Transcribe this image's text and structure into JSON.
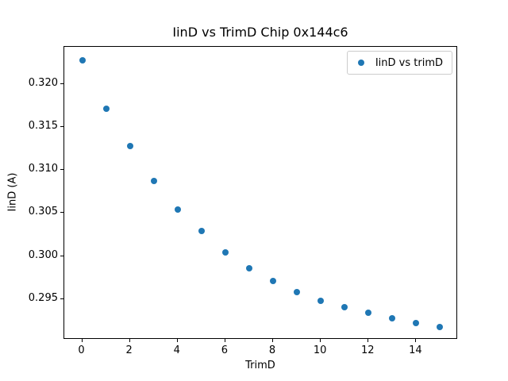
{
  "chart_data": {
    "type": "scatter",
    "title": "IinD vs TrimD Chip 0x144c6",
    "xlabel": "TrimD",
    "ylabel": "IinD (A)",
    "legend": [
      "IinD vs trimD"
    ],
    "legend_position": "upper right",
    "grid": false,
    "marker_color": "#1f77b4",
    "x": [
      0,
      1,
      2,
      3,
      4,
      5,
      6,
      7,
      8,
      9,
      10,
      11,
      12,
      13,
      14,
      15
    ],
    "y": [
      0.3227,
      0.3171,
      0.3128,
      0.3087,
      0.3054,
      0.3029,
      0.3004,
      0.2986,
      0.2971,
      0.2958,
      0.2948,
      0.2941,
      0.2934,
      0.2928,
      0.2922,
      0.2918
    ],
    "xlim": [
      -0.75,
      15.75
    ],
    "ylim": [
      0.2903,
      0.3243
    ],
    "xticks": [
      0,
      2,
      4,
      6,
      8,
      10,
      12,
      14
    ],
    "yticks": [
      0.295,
      0.3,
      0.305,
      0.31,
      0.315,
      0.32
    ],
    "ytick_decimals": 3
  }
}
